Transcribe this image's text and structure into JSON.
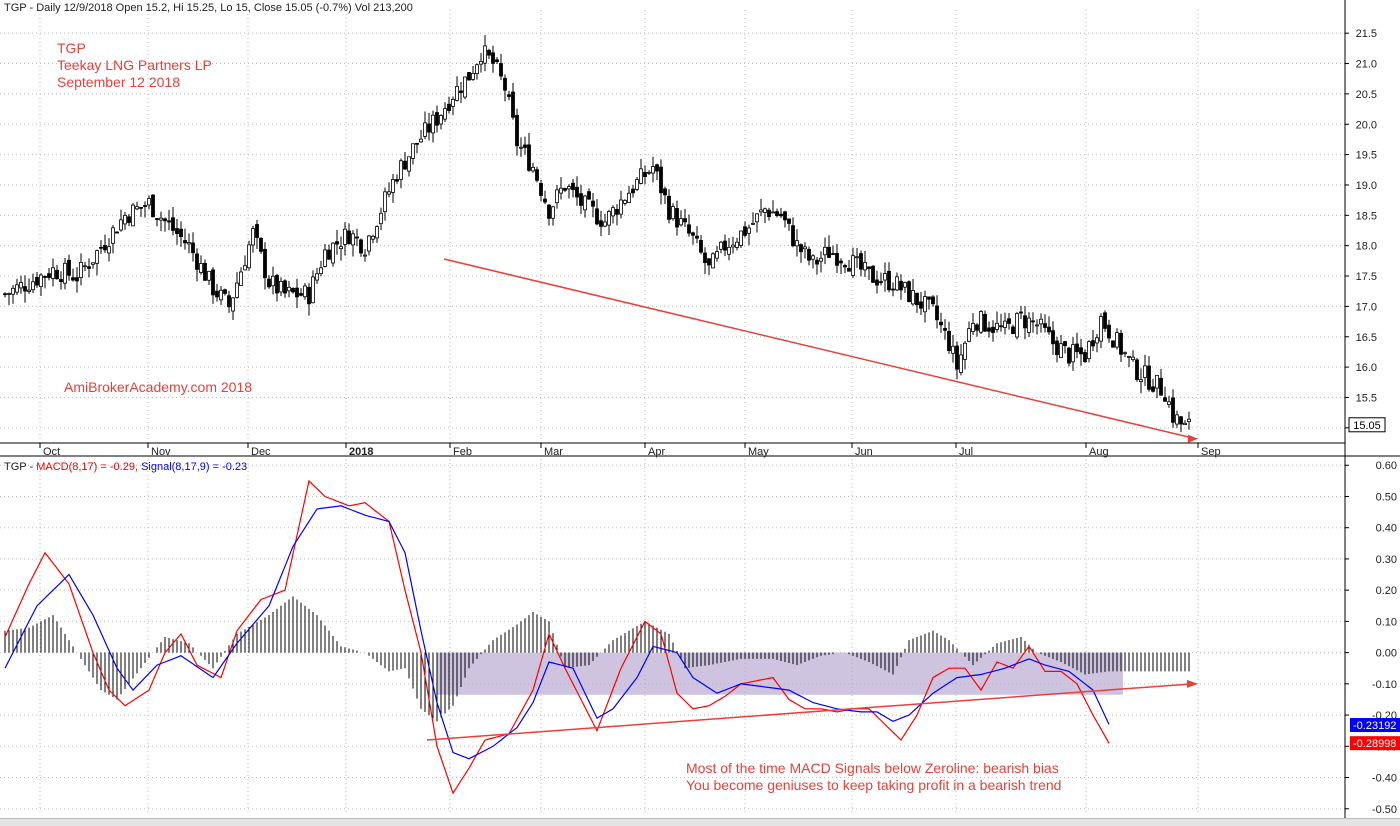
{
  "header": {
    "price_info": "TGP - Daily 12/9/2018 Open 15.2, Hi 15.25, Lo 15, Close 15.05 (-0.7%) Vol 213,200",
    "macd_prefix": "TGP - ",
    "macd_label": "MACD(8,17) = -0.29,",
    "signal_label": "Signal(8,17,9) = -0.23"
  },
  "annotations": {
    "ticker": "TGP",
    "company": "Teekay LNG Partners LP",
    "date": "September 12 2018",
    "watermark": "AmiBrokerAcademy.com  2018",
    "note_line1": "Most of the time MACD Signals below Zeroline: bearish bias",
    "note_line2": "You become geniuses to keep taking profit in a bearish trend"
  },
  "colors": {
    "macd": "#ff0000",
    "signal": "#0000ff",
    "histogram": "#000000",
    "trendline": "#e8403a",
    "zone": "#b4a5cf",
    "grid": "#bdbdbd"
  },
  "chart_data": [
    {
      "type": "candlestick",
      "x_labels": [
        "Oct",
        "Nov",
        "Dec",
        "2018",
        "Feb",
        "Mar",
        "Apr",
        "May",
        "Jun",
        "Jul",
        "Aug",
        "Sep"
      ],
      "y_ticks": [
        "21.5",
        "21.0",
        "20.5",
        "20.0",
        "19.5",
        "19.0",
        "18.5",
        "18.0",
        "17.5",
        "17.0",
        "16.5",
        "16.0",
        "15.5",
        "15.0"
      ],
      "ylim": [
        14.75,
        21.75
      ],
      "last_value": "15.05",
      "close_path": [
        [
          0,
          17.2
        ],
        [
          12,
          17.6
        ],
        [
          18,
          17.5
        ],
        [
          22,
          17.8
        ],
        [
          30,
          18.5
        ],
        [
          36,
          18.7
        ],
        [
          40,
          18.4
        ],
        [
          46,
          18.0
        ],
        [
          52,
          17.3
        ],
        [
          56,
          17.0
        ],
        [
          62,
          18.2
        ],
        [
          66,
          17.4
        ],
        [
          70,
          17.2
        ],
        [
          76,
          17.2
        ],
        [
          80,
          17.9
        ],
        [
          86,
          18.2
        ],
        [
          90,
          18.0
        ],
        [
          94,
          18.6
        ],
        [
          98,
          19.2
        ],
        [
          103,
          19.7
        ],
        [
          108,
          20.1
        ],
        [
          112,
          20.5
        ],
        [
          116,
          20.8
        ],
        [
          119,
          21.2
        ],
        [
          122,
          21.0
        ],
        [
          125,
          20.6
        ],
        [
          128,
          19.7
        ],
        [
          132,
          19.3
        ],
        [
          136,
          18.6
        ],
        [
          140,
          19.0
        ],
        [
          144,
          18.7
        ],
        [
          150,
          18.4
        ],
        [
          156,
          18.9
        ],
        [
          162,
          19.3
        ],
        [
          166,
          18.6
        ],
        [
          172,
          18.1
        ],
        [
          176,
          17.6
        ],
        [
          180,
          18.0
        ],
        [
          186,
          18.3
        ],
        [
          190,
          18.6
        ],
        [
          194,
          18.5
        ],
        [
          198,
          18.0
        ],
        [
          202,
          17.7
        ],
        [
          206,
          17.9
        ],
        [
          210,
          17.8
        ],
        [
          216,
          17.5
        ],
        [
          222,
          17.4
        ],
        [
          228,
          17.1
        ],
        [
          232,
          16.9
        ],
        [
          236,
          16.4
        ],
        [
          238,
          16.0
        ],
        [
          242,
          16.8
        ],
        [
          246,
          16.7
        ],
        [
          250,
          16.6
        ],
        [
          254,
          16.8
        ],
        [
          258,
          16.7
        ],
        [
          262,
          16.4
        ],
        [
          266,
          16.2
        ],
        [
          270,
          16.2
        ],
        [
          274,
          16.8
        ],
        [
          278,
          16.4
        ],
        [
          282,
          16.0
        ],
        [
          286,
          15.8
        ],
        [
          290,
          15.6
        ],
        [
          292,
          15.2
        ],
        [
          295,
          15.0
        ],
        [
          297,
          15.05
        ]
      ]
    },
    {
      "type": "line",
      "y_ticks": [
        "0.60",
        "0.50",
        "0.40",
        "0.30",
        "0.20",
        "0.10",
        "0.00",
        "-0.10",
        "-0.20",
        "-0.30",
        "-0.40",
        "-0.50"
      ],
      "ylim": [
        -0.52,
        0.62
      ],
      "series": [
        {
          "name": "MACD(8,17)",
          "current": "-0.28998",
          "points": [
            [
              0,
              0.05
            ],
            [
              6,
              0.22
            ],
            [
              10,
              0.32
            ],
            [
              16,
              0.22
            ],
            [
              22,
              0.0
            ],
            [
              26,
              -0.12
            ],
            [
              30,
              -0.17
            ],
            [
              36,
              -0.12
            ],
            [
              40,
              0.0
            ],
            [
              44,
              0.06
            ],
            [
              48,
              -0.04
            ],
            [
              54,
              -0.08
            ],
            [
              58,
              0.07
            ],
            [
              64,
              0.17
            ],
            [
              70,
              0.2
            ],
            [
              76,
              0.55
            ],
            [
              80,
              0.5
            ],
            [
              86,
              0.47
            ],
            [
              90,
              0.48
            ],
            [
              96,
              0.42
            ],
            [
              100,
              0.2
            ],
            [
              104,
              0.0
            ],
            [
              108,
              -0.3
            ],
            [
              112,
              -0.45
            ],
            [
              116,
              -0.37
            ],
            [
              120,
              -0.28
            ],
            [
              126,
              -0.26
            ],
            [
              132,
              -0.12
            ],
            [
              136,
              0.06
            ],
            [
              140,
              -0.05
            ],
            [
              144,
              -0.15
            ],
            [
              148,
              -0.25
            ],
            [
              154,
              -0.05
            ],
            [
              160,
              0.1
            ],
            [
              164,
              0.06
            ],
            [
              168,
              -0.13
            ],
            [
              172,
              -0.18
            ],
            [
              176,
              -0.17
            ],
            [
              180,
              -0.14
            ],
            [
              184,
              -0.1
            ],
            [
              188,
              -0.09
            ],
            [
              192,
              -0.08
            ],
            [
              196,
              -0.15
            ],
            [
              200,
              -0.18
            ],
            [
              204,
              -0.18
            ],
            [
              208,
              -0.19
            ],
            [
              212,
              -0.18
            ],
            [
              216,
              -0.18
            ],
            [
              220,
              -0.23
            ],
            [
              224,
              -0.28
            ],
            [
              228,
              -0.2
            ],
            [
              232,
              -0.08
            ],
            [
              236,
              -0.05
            ],
            [
              240,
              -0.05
            ],
            [
              244,
              -0.12
            ],
            [
              248,
              -0.03
            ],
            [
              252,
              -0.05
            ],
            [
              256,
              0.02
            ],
            [
              260,
              -0.06
            ],
            [
              264,
              -0.06
            ],
            [
              268,
              -0.1
            ],
            [
              272,
              -0.2
            ],
            [
              276,
              -0.29
            ]
          ]
        },
        {
          "name": "Signal(8,17,9)",
          "current": "-0.23192",
          "points": [
            [
              0,
              -0.05
            ],
            [
              8,
              0.15
            ],
            [
              16,
              0.25
            ],
            [
              22,
              0.12
            ],
            [
              28,
              -0.05
            ],
            [
              32,
              -0.12
            ],
            [
              38,
              -0.04
            ],
            [
              44,
              -0.01
            ],
            [
              52,
              -0.08
            ],
            [
              58,
              0.03
            ],
            [
              66,
              0.15
            ],
            [
              72,
              0.34
            ],
            [
              78,
              0.46
            ],
            [
              84,
              0.47
            ],
            [
              90,
              0.44
            ],
            [
              96,
              0.42
            ],
            [
              100,
              0.32
            ],
            [
              104,
              0.07
            ],
            [
              108,
              -0.16
            ],
            [
              112,
              -0.32
            ],
            [
              116,
              -0.34
            ],
            [
              122,
              -0.3
            ],
            [
              128,
              -0.24
            ],
            [
              132,
              -0.16
            ],
            [
              136,
              -0.03
            ],
            [
              142,
              -0.05
            ],
            [
              148,
              -0.21
            ],
            [
              152,
              -0.18
            ],
            [
              158,
              -0.08
            ],
            [
              162,
              0.02
            ],
            [
              168,
              0.0
            ],
            [
              172,
              -0.08
            ],
            [
              178,
              -0.13
            ],
            [
              184,
              -0.1
            ],
            [
              190,
              -0.11
            ],
            [
              196,
              -0.12
            ],
            [
              202,
              -0.16
            ],
            [
              208,
              -0.18
            ],
            [
              214,
              -0.19
            ],
            [
              218,
              -0.19
            ],
            [
              222,
              -0.22
            ],
            [
              226,
              -0.2
            ],
            [
              232,
              -0.13
            ],
            [
              238,
              -0.08
            ],
            [
              244,
              -0.07
            ],
            [
              250,
              -0.05
            ],
            [
              256,
              -0.02
            ],
            [
              260,
              -0.04
            ],
            [
              266,
              -0.06
            ],
            [
              272,
              -0.12
            ],
            [
              276,
              -0.23
            ]
          ]
        }
      ],
      "histogram_envelope": [
        [
          0,
          0.07
        ],
        [
          6,
          0.08
        ],
        [
          12,
          0.12
        ],
        [
          18,
          0.0
        ],
        [
          24,
          -0.12
        ],
        [
          28,
          -0.15
        ],
        [
          34,
          -0.05
        ],
        [
          40,
          0.05
        ],
        [
          46,
          0.03
        ],
        [
          52,
          -0.05
        ],
        [
          58,
          0.06
        ],
        [
          66,
          0.12
        ],
        [
          72,
          0.18
        ],
        [
          78,
          0.12
        ],
        [
          84,
          0.02
        ],
        [
          90,
          0.0
        ],
        [
          96,
          -0.06
        ],
        [
          100,
          -0.05
        ],
        [
          104,
          -0.18
        ],
        [
          108,
          -0.22
        ],
        [
          112,
          -0.17
        ],
        [
          116,
          -0.05
        ],
        [
          122,
          0.04
        ],
        [
          128,
          0.09
        ],
        [
          132,
          0.13
        ],
        [
          136,
          0.1
        ],
        [
          140,
          -0.05
        ],
        [
          146,
          -0.04
        ],
        [
          152,
          0.04
        ],
        [
          160,
          0.1
        ],
        [
          166,
          0.06
        ],
        [
          170,
          -0.05
        ],
        [
          176,
          -0.04
        ],
        [
          184,
          -0.02
        ],
        [
          192,
          -0.02
        ],
        [
          198,
          -0.04
        ],
        [
          204,
          -0.01
        ],
        [
          210,
          0.0
        ],
        [
          216,
          -0.03
        ],
        [
          222,
          -0.07
        ],
        [
          226,
          0.04
        ],
        [
          232,
          0.07
        ],
        [
          236,
          0.04
        ],
        [
          242,
          -0.04
        ],
        [
          248,
          0.03
        ],
        [
          254,
          0.05
        ],
        [
          258,
          0.0
        ],
        [
          264,
          -0.03
        ],
        [
          270,
          -0.07
        ],
        [
          276,
          -0.06
        ]
      ]
    }
  ]
}
